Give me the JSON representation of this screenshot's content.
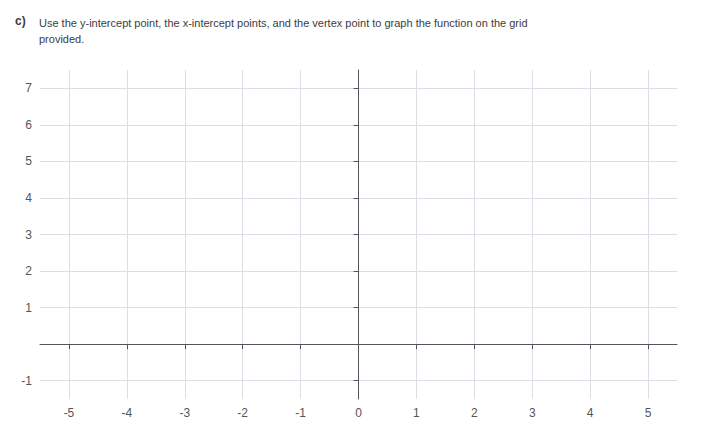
{
  "chart_data": {
    "type": "scatter",
    "title": "c)",
    "subtitle": "Use the y-intercept point, the x-intercept points, and the vertex point to graph the function on the grid\nprovided.",
    "xlim": [
      -5.5,
      5.5
    ],
    "ylim": [
      -1.5,
      7.5
    ],
    "xticks": [
      -5,
      -4,
      -3,
      -2,
      -1,
      0,
      1,
      2,
      3,
      4,
      5
    ],
    "yticks": [
      -1,
      1,
      2,
      3,
      4,
      5,
      6,
      7
    ],
    "grid": true
  }
}
